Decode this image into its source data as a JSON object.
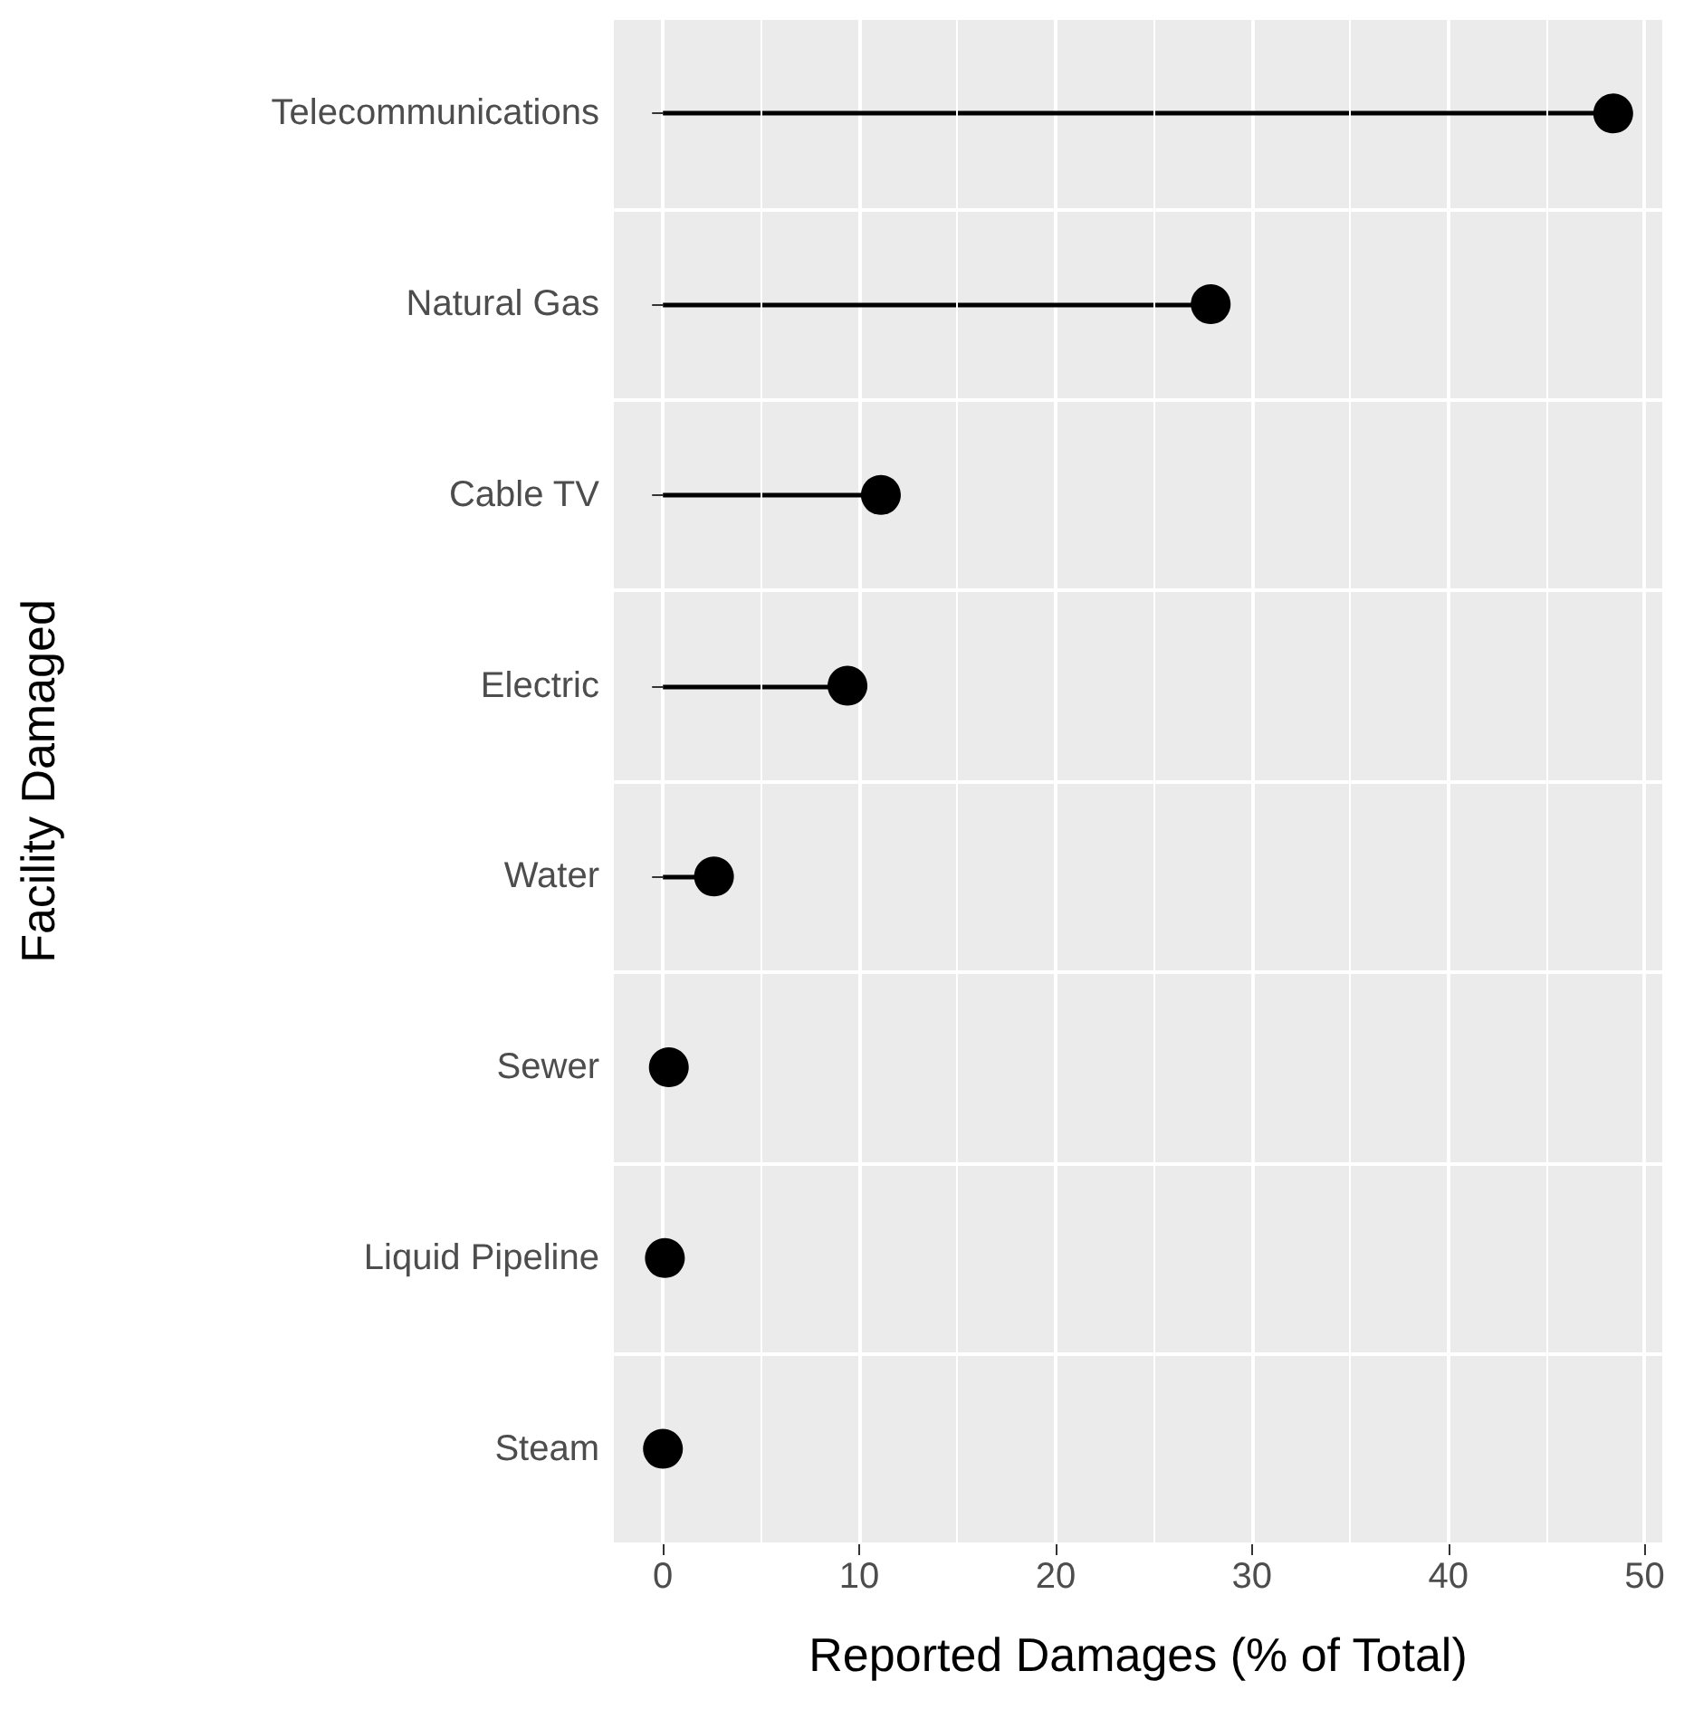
{
  "chart_data": {
    "type": "lollipop",
    "orientation": "horizontal",
    "xlabel": "Reported Damages (% of Total)",
    "ylabel": "Facility Damaged",
    "categories": [
      "Telecommunications",
      "Natural Gas",
      "Cable TV",
      "Electric",
      "Water",
      "Sewer",
      "Liquid Pipeline",
      "Steam"
    ],
    "values": [
      48.4,
      27.9,
      11.1,
      9.4,
      2.6,
      0.3,
      0.1,
      0.0
    ],
    "color": "#000000",
    "xlim": [
      -2.5,
      50.9
    ],
    "xticks": [
      0,
      10,
      20,
      30,
      40,
      50
    ],
    "grid": true,
    "marker": "circle"
  }
}
